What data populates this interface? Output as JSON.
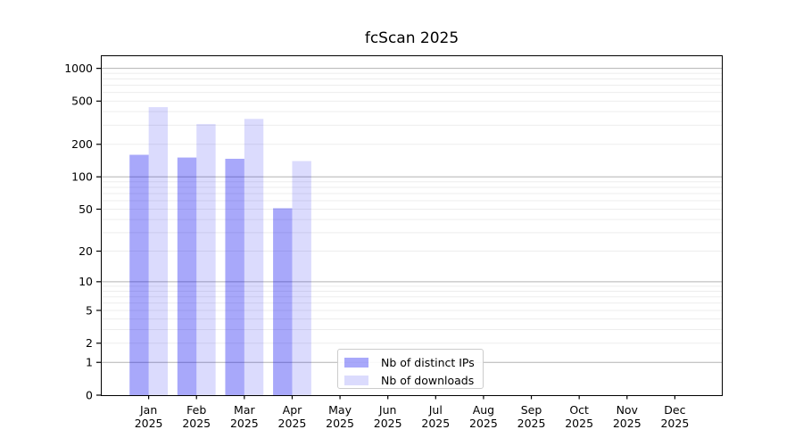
{
  "chart_data": {
    "type": "bar",
    "title": "fcScan 2025",
    "categories": [
      "Jan",
      "Feb",
      "Mar",
      "Apr",
      "May",
      "Jun",
      "Jul",
      "Aug",
      "Sep",
      "Oct",
      "Nov",
      "Dec"
    ],
    "year_label": "2025",
    "series": [
      {
        "name": "Nb of distinct IPs",
        "color": "rgba(0,0,240,0.34)",
        "values": [
          160,
          151,
          147,
          51,
          0,
          0,
          0,
          0,
          0,
          0,
          0,
          0
        ]
      },
      {
        "name": "Nb of downloads",
        "color": "rgba(0,0,240,0.14)",
        "values": [
          440,
          307,
          343,
          140,
          0,
          0,
          0,
          0,
          0,
          0,
          0,
          0
        ]
      }
    ],
    "yscale": "log1p",
    "ylim": [
      0,
      1318
    ],
    "yticks": [
      1000,
      500,
      200,
      100,
      50,
      20,
      10,
      5,
      2,
      1,
      0
    ],
    "grid": {
      "major": [
        1,
        10,
        100,
        1000
      ],
      "minor": [
        2,
        3,
        4,
        5,
        6,
        7,
        8,
        9,
        20,
        30,
        40,
        50,
        60,
        70,
        80,
        90,
        200,
        300,
        400,
        500,
        600,
        700,
        800,
        900
      ],
      "major_color": "#b3b3b3",
      "minor_color": "#ededed"
    },
    "legend_position": "lower-center",
    "axis_color": "#000000",
    "tick_label_color": "#000000"
  }
}
